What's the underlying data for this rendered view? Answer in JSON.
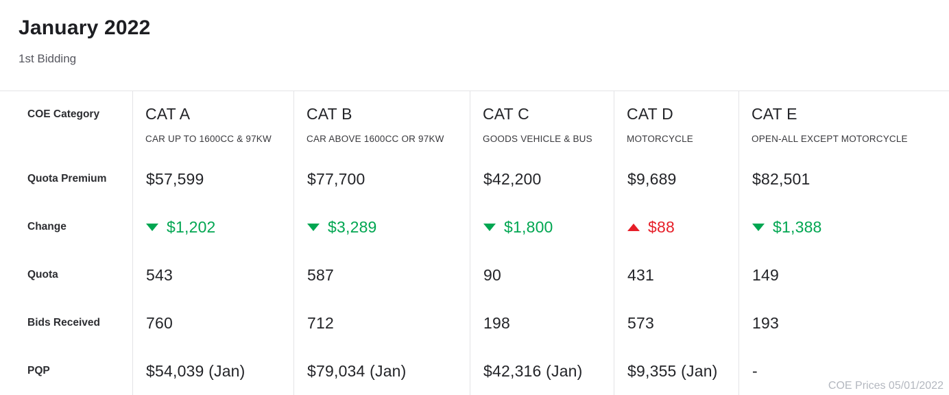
{
  "header": {
    "title": "January 2022",
    "subtitle": "1st Bidding"
  },
  "table": {
    "corner_label": "COE Category",
    "columns": [
      {
        "code": "CAT A",
        "description": "CAR UP TO 1600CC & 97KW"
      },
      {
        "code": "CAT B",
        "description": "CAR ABOVE 1600CC OR 97KW"
      },
      {
        "code": "CAT C",
        "description": "GOODS VEHICLE & BUS"
      },
      {
        "code": "CAT D",
        "description": "MOTORCYCLE"
      },
      {
        "code": "CAT E",
        "description": "OPEN-ALL EXCEPT MOTORCYCLE"
      }
    ],
    "rows": {
      "quota_premium": {
        "label": "Quota Premium",
        "values": [
          "$57,599",
          "$77,700",
          "$42,200",
          "$9,689",
          "$82,501"
        ]
      },
      "change": {
        "label": "Change",
        "values": [
          {
            "amount": "$1,202",
            "direction": "down"
          },
          {
            "amount": "$3,289",
            "direction": "down"
          },
          {
            "amount": "$1,800",
            "direction": "down"
          },
          {
            "amount": "$88",
            "direction": "up"
          },
          {
            "amount": "$1,388",
            "direction": "down"
          }
        ]
      },
      "quota": {
        "label": "Quota",
        "values": [
          "543",
          "587",
          "90",
          "431",
          "149"
        ]
      },
      "bids_received": {
        "label": "Bids Received",
        "values": [
          "760",
          "712",
          "198",
          "573",
          "193"
        ]
      },
      "pqp": {
        "label": "PQP",
        "values": [
          "$54,039 (Jan)",
          "$79,034 (Jan)",
          "$42,316 (Jan)",
          "$9,355 (Jan)",
          "-"
        ]
      }
    }
  },
  "footer": {
    "watermark": "COE Prices 05/01/2022"
  },
  "theme": {
    "up_color": "#e61e28",
    "down_color": "#00a651",
    "border_color": "#e3e3e6",
    "text_color": "#232428",
    "watermark_color": "#b3b7bf"
  }
}
